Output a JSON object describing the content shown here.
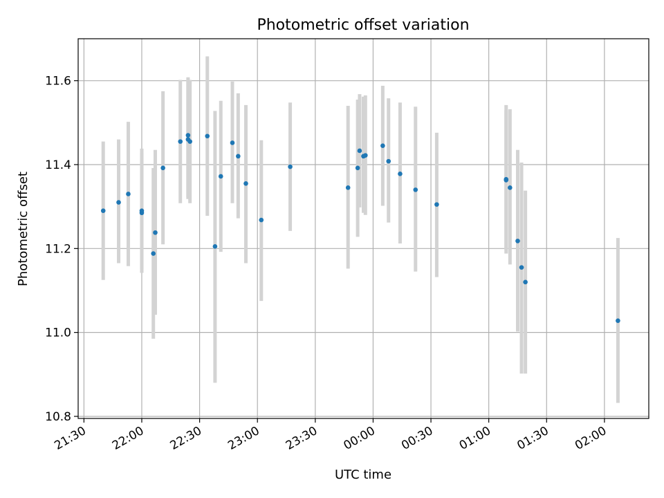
{
  "chart_data": {
    "type": "scatter",
    "title": "Photometric offset variation",
    "xlabel": "UTC time",
    "ylabel": "Photometric offset",
    "xlim": [
      "21:27",
      "02:23"
    ],
    "ylim": [
      10.795,
      11.7
    ],
    "grid": true,
    "x_ticks": [
      "21:30",
      "22:00",
      "22:30",
      "23:00",
      "23:30",
      "00:00",
      "00:30",
      "01:00",
      "01:30",
      "02:00"
    ],
    "y_ticks": [
      "10.8",
      "11.0",
      "11.2",
      "11.4",
      "11.6"
    ],
    "colors": {
      "marker": "#1f77b4",
      "errorbar": "#d3d3d3",
      "grid": "#b0b0b0"
    },
    "series": [
      {
        "points": [
          {
            "x": "21:40",
            "y": 11.29,
            "ylo": 11.125,
            "yhi": 11.455
          },
          {
            "x": "21:48",
            "y": 11.31,
            "ylo": 11.165,
            "yhi": 11.46
          },
          {
            "x": "21:53",
            "y": 11.33,
            "ylo": 11.158,
            "yhi": 11.502
          },
          {
            "x": "22:00",
            "y": 11.285,
            "ylo": 11.142,
            "yhi": 11.428
          },
          {
            "x": "22:00",
            "y": 11.29,
            "ylo": 11.15,
            "yhi": 11.438
          },
          {
            "x": "22:06",
            "y": 11.188,
            "ylo": 10.985,
            "yhi": 11.392
          },
          {
            "x": "22:07",
            "y": 11.238,
            "ylo": 11.042,
            "yhi": 11.435
          },
          {
            "x": "22:11",
            "y": 11.392,
            "ylo": 11.21,
            "yhi": 11.575
          },
          {
            "x": "22:20",
            "y": 11.455,
            "ylo": 11.308,
            "yhi": 11.602
          },
          {
            "x": "22:24",
            "y": 11.47,
            "ylo": 11.318,
            "yhi": 11.608
          },
          {
            "x": "22:24",
            "y": 11.46,
            "ylo": 11.322,
            "yhi": 11.602
          },
          {
            "x": "22:25",
            "y": 11.455,
            "ylo": 11.308,
            "yhi": 11.602
          },
          {
            "x": "22:34",
            "y": 11.468,
            "ylo": 11.278,
            "yhi": 11.658
          },
          {
            "x": "22:38",
            "y": 11.205,
            "ylo": 10.88,
            "yhi": 11.528
          },
          {
            "x": "22:41",
            "y": 11.372,
            "ylo": 11.192,
            "yhi": 11.552
          },
          {
            "x": "22:47",
            "y": 11.452,
            "ylo": 11.308,
            "yhi": 11.598
          },
          {
            "x": "22:50",
            "y": 11.42,
            "ylo": 11.272,
            "yhi": 11.57
          },
          {
            "x": "22:54",
            "y": 11.355,
            "ylo": 11.165,
            "yhi": 11.542
          },
          {
            "x": "23:02",
            "y": 11.268,
            "ylo": 11.075,
            "yhi": 11.458
          },
          {
            "x": "23:17",
            "y": 11.395,
            "ylo": 11.242,
            "yhi": 11.548
          },
          {
            "x": "23:47",
            "y": 11.345,
            "ylo": 11.152,
            "yhi": 11.54
          },
          {
            "x": "23:52",
            "y": 11.392,
            "ylo": 11.228,
            "yhi": 11.555
          },
          {
            "x": "23:53",
            "y": 11.433,
            "ylo": 11.298,
            "yhi": 11.568
          },
          {
            "x": "23:55",
            "y": 11.42,
            "ylo": 11.285,
            "yhi": 11.562
          },
          {
            "x": "23:56",
            "y": 11.422,
            "ylo": 11.28,
            "yhi": 11.565
          },
          {
            "x": "00:05",
            "y": 11.445,
            "ylo": 11.302,
            "yhi": 11.588
          },
          {
            "x": "00:08",
            "y": 11.408,
            "ylo": 11.262,
            "yhi": 11.558
          },
          {
            "x": "00:14",
            "y": 11.378,
            "ylo": 11.212,
            "yhi": 11.548
          },
          {
            "x": "00:22",
            "y": 11.34,
            "ylo": 11.145,
            "yhi": 11.538
          },
          {
            "x": "00:33",
            "y": 11.305,
            "ylo": 11.132,
            "yhi": 11.476
          },
          {
            "x": "01:09",
            "y": 11.365,
            "ylo": 11.188,
            "yhi": 11.542
          },
          {
            "x": "01:09",
            "y": 11.363,
            "ylo": 11.198,
            "yhi": 11.53
          },
          {
            "x": "01:11",
            "y": 11.345,
            "ylo": 11.162,
            "yhi": 11.532
          },
          {
            "x": "01:15",
            "y": 11.218,
            "ylo": 11.002,
            "yhi": 11.435
          },
          {
            "x": "01:17",
            "y": 11.155,
            "ylo": 10.902,
            "yhi": 11.405
          },
          {
            "x": "01:19",
            "y": 11.12,
            "ylo": 10.902,
            "yhi": 11.338
          },
          {
            "x": "02:07",
            "y": 11.028,
            "ylo": 10.832,
            "yhi": 11.225
          }
        ]
      }
    ]
  }
}
